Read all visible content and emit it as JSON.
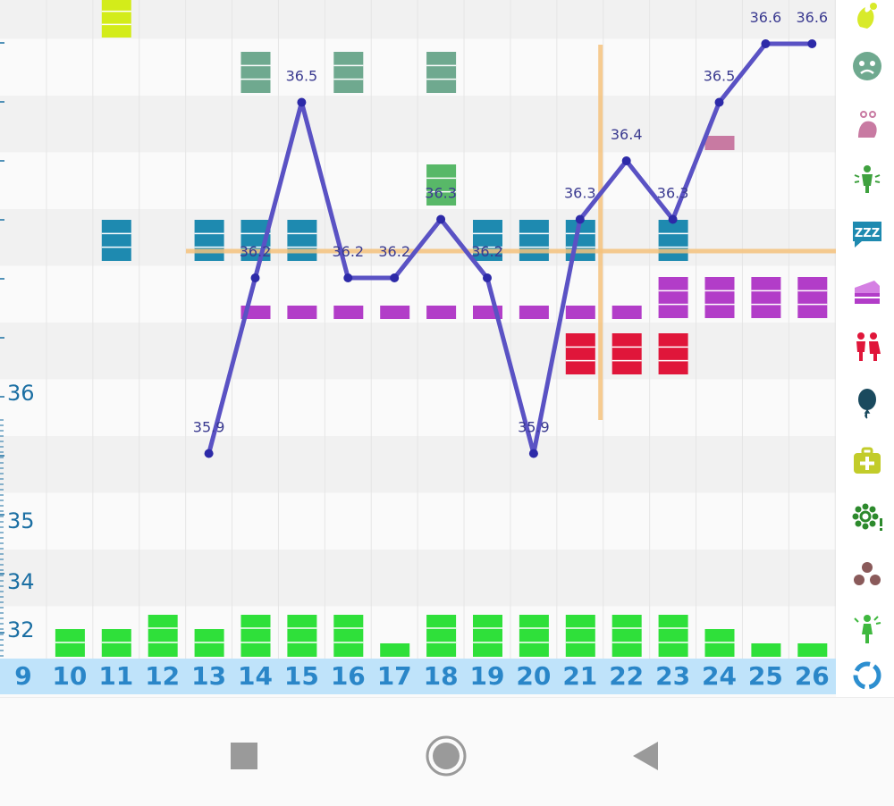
{
  "chart_data": {
    "type": "line",
    "days": [
      9,
      10,
      11,
      12,
      13,
      14,
      15,
      16,
      17,
      18,
      19,
      20,
      21,
      22,
      23,
      24,
      25,
      26
    ],
    "y_tick_labels": [
      "36",
      "35",
      "34",
      "32"
    ],
    "series": [
      {
        "x": [
          13,
          14,
          15,
          16,
          17,
          18,
          19,
          20,
          21,
          22,
          23,
          24,
          25,
          26
        ],
        "values": [
          35.9,
          36.2,
          36.5,
          36.2,
          36.2,
          36.3,
          36.2,
          35.9,
          36.3,
          36.4,
          36.3,
          36.5,
          36.6,
          36.6
        ],
        "point_labels": [
          "35.9",
          "36.2",
          "36.5",
          "36.2",
          "36.2",
          "36.3",
          "36.2",
          "35.9",
          "36.3",
          "36.4",
          "36.3",
          "36.5",
          "36.6",
          "36.6"
        ]
      }
    ],
    "coverline_value": 36.25,
    "ovulation_day": 22,
    "colors": {
      "line": "#5a52c4",
      "point": "#2d2aa8",
      "label": "#3a3a90",
      "coverline": "#f4c27c",
      "gridlines": "#e6e6e6"
    }
  },
  "symptom_rows": [
    {
      "name": "energy",
      "color": "#d3ec1a",
      "days": [
        11
      ]
    },
    {
      "name": "mood",
      "color": "#6fa98f",
      "days": [
        14,
        16,
        18
      ]
    },
    {
      "name": "pain",
      "color": "#c87aa2",
      "days": [
        24
      ]
    },
    {
      "name": "discharge",
      "color": "#58b868",
      "days": [
        18
      ]
    },
    {
      "name": "sleep",
      "color": "#1e8ab0",
      "days": [
        11,
        13,
        14,
        15,
        19,
        20,
        21,
        23
      ]
    },
    {
      "name": "cravings",
      "color": "#b23dc8",
      "days": [
        14,
        15,
        16,
        17,
        18,
        19,
        20,
        21,
        22,
        23,
        24,
        25,
        26
      ]
    },
    {
      "name": "sex",
      "color": "#e0163a",
      "days": [
        21,
        22,
        23
      ]
    }
  ],
  "flow": {
    "color": "#2fe03a",
    "days": [
      10,
      11,
      12,
      13,
      14,
      15,
      16,
      17,
      18,
      19,
      20,
      21,
      22,
      23,
      24,
      25,
      26
    ],
    "levels": [
      2,
      2,
      3,
      2,
      3,
      3,
      3,
      1,
      3,
      3,
      3,
      3,
      3,
      3,
      2,
      1,
      1
    ]
  },
  "day_labels": [
    "9",
    "10",
    "11",
    "12",
    "13",
    "14",
    "15",
    "16",
    "17",
    "18",
    "19",
    "20",
    "21",
    "22",
    "23",
    "24",
    "25",
    "26"
  ],
  "right_icons": [
    "energy-icon",
    "mood-icon",
    "pain-icon",
    "discharge-icon",
    "sleep-icon",
    "cravings-icon",
    "sex-icon",
    "balloon-icon",
    "medical-kit-icon",
    "allergy-icon",
    "dots-icon",
    "posture-icon",
    "cycle-icon"
  ],
  "nav": {
    "back": "back-icon",
    "home": "home-icon",
    "recents": "recents-icon"
  }
}
